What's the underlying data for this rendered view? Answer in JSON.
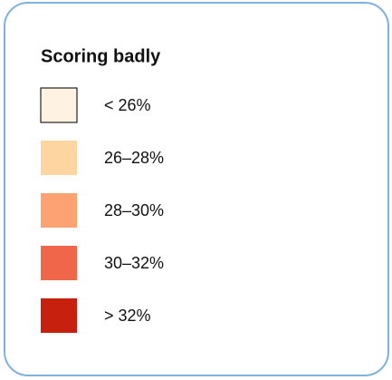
{
  "legend": {
    "title": "Scoring badly",
    "items": [
      {
        "label": "< 26%",
        "color": "#fef2e2"
      },
      {
        "label": "26–28%",
        "color": "#fdd5a1"
      },
      {
        "label": "28–30%",
        "color": "#fca273"
      },
      {
        "label": "30–32%",
        "color": "#f0664a"
      },
      {
        "label": "> 32%",
        "color": "#c8200e"
      }
    ]
  }
}
